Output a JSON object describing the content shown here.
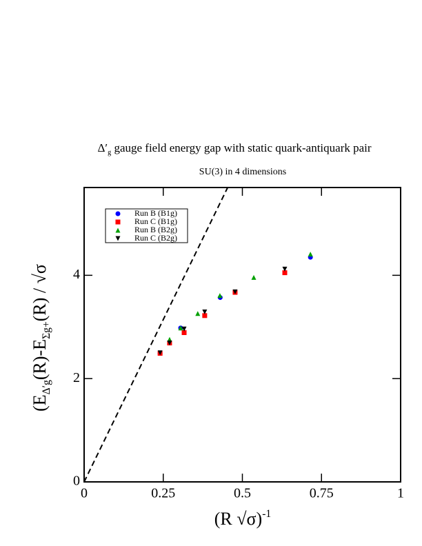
{
  "chart_data": {
    "type": "scatter",
    "title": [
      "Δ′",
      "g",
      " gauge field energy gap with static quark-antiquark pair"
    ],
    "subtitle": "SU(3) in 4 dimensions",
    "xlabel": [
      "(R √σ)",
      "-1"
    ],
    "ylabel": [
      "(E",
      "Δ′g",
      "(R)-E",
      "Σg+",
      "(R) / √σ"
    ],
    "xlim": [
      0,
      1
    ],
    "ylim": [
      0,
      5.7
    ],
    "xticks": [
      0,
      0.25,
      0.5,
      0.75,
      1
    ],
    "yticks": [
      0,
      2,
      4
    ],
    "legend": "upper left",
    "reference_line_slope": 12.57,
    "series": [
      {
        "name": "Run B (B1g)",
        "color": "#0000ff",
        "marker": "circle",
        "x": [
          0.24,
          0.305,
          0.43,
          0.715
        ],
        "values": [
          2.49,
          2.98,
          3.57,
          4.35
        ]
      },
      {
        "name": "Run C (B1g)",
        "color": "#ff0000",
        "marker": "square",
        "x": [
          0.24,
          0.27,
          0.316,
          0.381,
          0.477,
          0.634
        ],
        "values": [
          2.49,
          2.69,
          2.89,
          3.22,
          3.67,
          4.05
        ]
      },
      {
        "name": "Run B (B2g)",
        "color": "#00a000",
        "marker": "triangle-up",
        "x": [
          0.27,
          0.305,
          0.359,
          0.429,
          0.536,
          0.715
        ],
        "values": [
          2.76,
          2.98,
          3.26,
          3.61,
          3.96,
          4.41
        ]
      },
      {
        "name": "Run C (B2g)",
        "color": "#000000",
        "marker": "triangle-down",
        "x": [
          0.24,
          0.27,
          0.316,
          0.381,
          0.477,
          0.634
        ],
        "values": [
          2.5,
          2.69,
          2.96,
          3.29,
          3.68,
          4.12
        ]
      }
    ]
  }
}
